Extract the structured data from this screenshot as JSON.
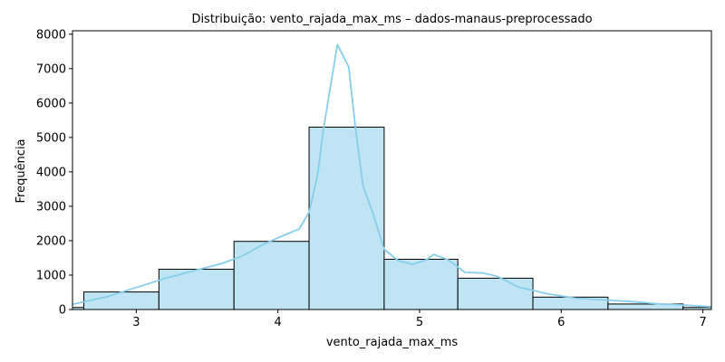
{
  "chart_data": {
    "type": "bar",
    "title": "Distribuição: vento_rajada_max_ms – dados-manaus-preprocessado",
    "xlabel": "vento_rajada_max_ms",
    "ylabel": "Frequência",
    "xlim": [
      2.55,
      7.06
    ],
    "ylim": [
      0,
      8100
    ],
    "x_ticks": [
      3,
      4,
      5,
      6,
      7
    ],
    "y_ticks": [
      0,
      1000,
      2000,
      3000,
      4000,
      5000,
      6000,
      7000,
      8000
    ],
    "bar_color": "#bfe4f4",
    "bar_edge": "#000000",
    "kde_color": "#87ceeb",
    "bins": [
      {
        "x0": 2.55,
        "x1": 2.63,
        "value": 60
      },
      {
        "x0": 2.63,
        "x1": 3.16,
        "value": 510
      },
      {
        "x0": 3.16,
        "x1": 3.69,
        "value": 1170
      },
      {
        "x0": 3.69,
        "x1": 4.22,
        "value": 1980
      },
      {
        "x0": 4.22,
        "x1": 4.75,
        "value": 5300
      },
      {
        "x0": 4.75,
        "x1": 5.27,
        "value": 1460
      },
      {
        "x0": 5.27,
        "x1": 5.8,
        "value": 910
      },
      {
        "x0": 5.8,
        "x1": 6.33,
        "value": 360
      },
      {
        "x0": 6.33,
        "x1": 6.86,
        "value": 160
      },
      {
        "x0": 6.86,
        "x1": 7.06,
        "value": 60
      }
    ],
    "kde": {
      "x": [
        2.55,
        2.8,
        3.0,
        3.2,
        3.4,
        3.6,
        3.75,
        3.9,
        4.05,
        4.15,
        4.22,
        4.28,
        4.32,
        4.36,
        4.42,
        4.5,
        4.55,
        4.6,
        4.67,
        4.75,
        4.85,
        4.95,
        5.05,
        5.1,
        5.2,
        5.32,
        5.45,
        5.55,
        5.7,
        5.9,
        6.1,
        6.3,
        6.5,
        6.7,
        6.9,
        7.06
      ],
      "y": [
        150,
        380,
        640,
        900,
        1120,
        1330,
        1560,
        1900,
        2170,
        2340,
        2830,
        3900,
        5200,
        6200,
        7700,
        7050,
        5200,
        3600,
        2800,
        1750,
        1420,
        1310,
        1450,
        1600,
        1450,
        1080,
        1060,
        960,
        650,
        460,
        330,
        280,
        230,
        160,
        120,
        80
      ]
    }
  }
}
